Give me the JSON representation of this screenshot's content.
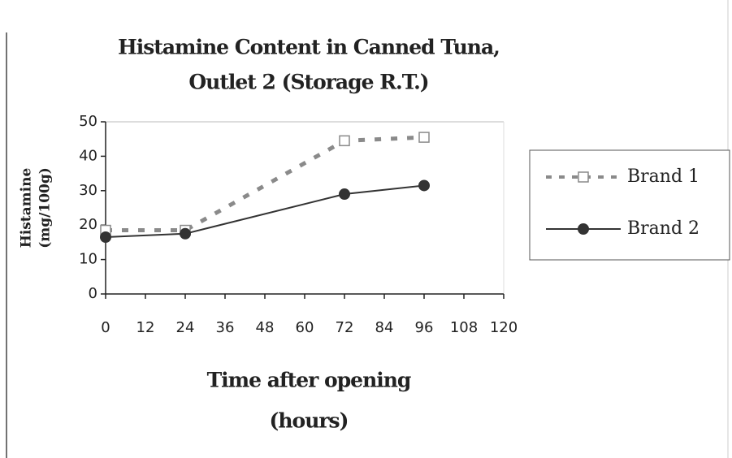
{
  "chart_data": {
    "type": "line",
    "title": [
      "Histamine Content in Canned Tuna,",
      "Outlet 2 (Storage R.T.)"
    ],
    "x_label": [
      "Time after opening",
      "(hours)"
    ],
    "y_label": [
      "Histamine",
      "(mg/100g)"
    ],
    "x": [
      0,
      24,
      72,
      96
    ],
    "series": [
      {
        "name": "Brand 1",
        "color": "#8a8a8a",
        "linestyle": "dashed",
        "marker": "square-open",
        "values": [
          18.5,
          18.5,
          44.5,
          45.5
        ]
      },
      {
        "name": "Brand 2",
        "color": "#333333",
        "linestyle": "solid",
        "marker": "circle",
        "values": [
          16.5,
          17.5,
          29,
          31.5
        ]
      }
    ],
    "xlim": [
      0,
      120
    ],
    "xticks": [
      0,
      12,
      24,
      36,
      48,
      60,
      72,
      84,
      96,
      108,
      120
    ],
    "ylim": [
      0,
      50
    ],
    "yticks": [
      0,
      10,
      20,
      30,
      40,
      50
    ],
    "grid": false,
    "legend": "right"
  }
}
